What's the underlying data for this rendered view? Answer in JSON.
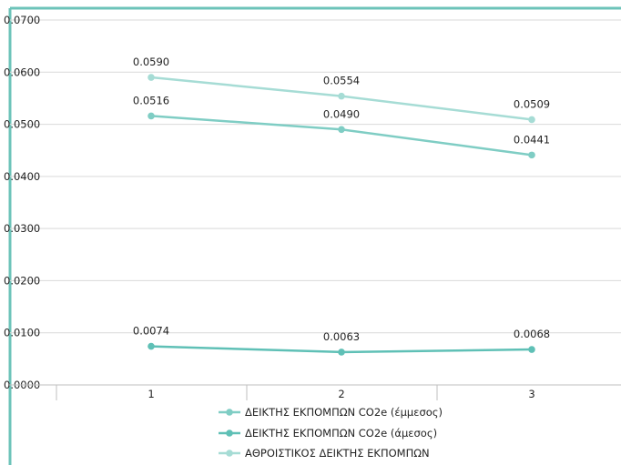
{
  "chart_data": {
    "type": "line",
    "categories": [
      "1",
      "2",
      "3"
    ],
    "series": [
      {
        "name": "ΔΕΙΚΤΗΣ ΕΚΠΟΜΠΩΝ CO2e (έμμεσος)",
        "values": [
          0.0516,
          0.049,
          0.0441
        ],
        "color": "#7fcdc4"
      },
      {
        "name": "ΔΕΙΚΤΗΣ ΕΚΠΟΜΠΩΝ CO2e (άμεσος)",
        "values": [
          0.0074,
          0.0063,
          0.0068
        ],
        "color": "#5fc0b6"
      },
      {
        "name": "ΑΘΡΟΙΣΤΙΚΟΣ ΔΕΙΚΤΗΣ ΕΚΠΟΜΠΩΝ",
        "values": [
          0.059,
          0.0554,
          0.0509
        ],
        "color": "#a6dcd5"
      }
    ],
    "data_labels": {
      "ΔΕΙΚΤΗΣ ΕΚΠΟΜΠΩΝ CO2e (έμμεσος)": [
        "0.0516",
        "0.0490",
        "0.0441"
      ],
      "ΔΕΙΚΤΗΣ ΕΚΠΟΜΠΩΝ CO2e (άμεσος)": [
        "0.0074",
        "0.0063",
        "0.0068"
      ],
      "ΑΘΡΟΙΣΤΙΚΟΣ ΔΕΙΚΤΗΣ ΕΚΠΟΜΠΩΝ": [
        "0.0590",
        "0.0554",
        "0.0509"
      ]
    },
    "y_ticks": [
      "0.0000",
      "0.0100",
      "0.0200",
      "0.0300",
      "0.0400",
      "0.0500",
      "0.0600",
      "0.0700"
    ],
    "ylim": [
      0,
      0.07
    ],
    "grid": true,
    "legend_position": "bottom",
    "frame_color": "#6cc3b9"
  }
}
